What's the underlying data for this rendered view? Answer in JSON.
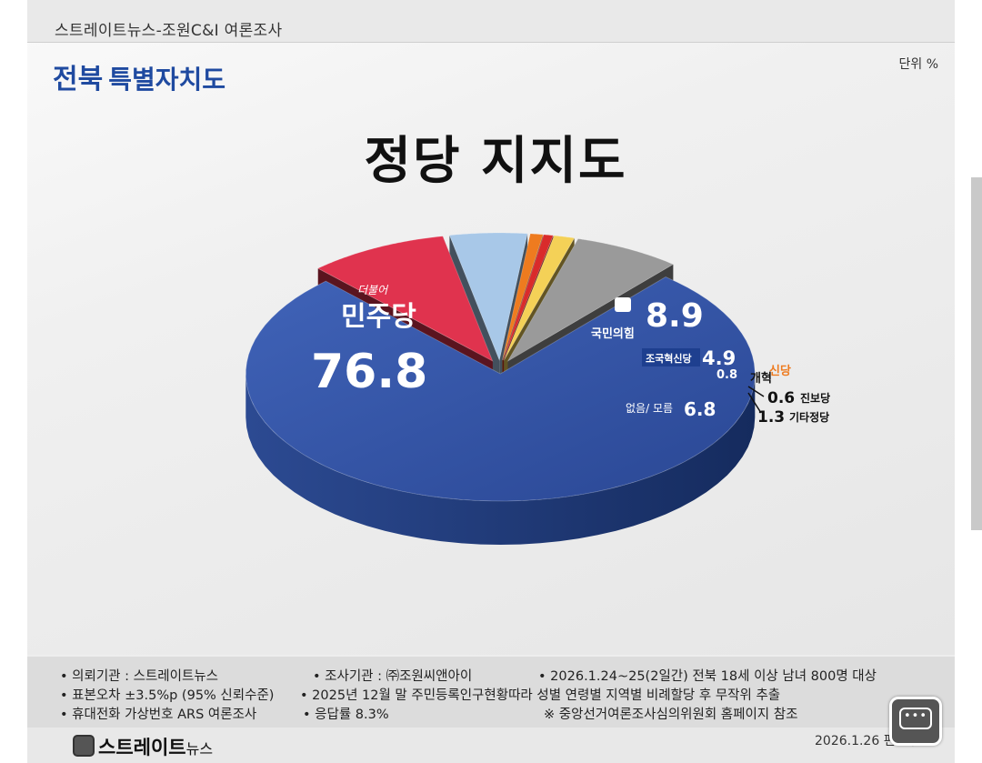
{
  "header": {
    "source": "스트레이트뉴스-조원C&I 여론조사",
    "region_a": "전북",
    "region_b": "특별자치도",
    "unit": "단위 %"
  },
  "chart_data": {
    "type": "pie",
    "title": "정당 지지도",
    "slices": [
      {
        "label": "민주당",
        "sublabel": "더불어",
        "value": 76.8,
        "color": "#2f4fa3"
      },
      {
        "label": "국민의힘",
        "value": 8.9,
        "color": "#e0334e"
      },
      {
        "label": "조국혁신당",
        "value": 4.9,
        "color": "#a8c8e8"
      },
      {
        "label": "개혁신당",
        "value": 0.8,
        "color": "#ee7b1f"
      },
      {
        "label": "진보당",
        "value": 0.6,
        "color": "#d92b2b"
      },
      {
        "label": "기타정당",
        "value": 1.3,
        "color": "#f4d157"
      },
      {
        "label": "없음/ 모름",
        "value": 6.8,
        "color": "#9a9a9a"
      }
    ]
  },
  "notes": {
    "client": "• 의뢰기관 : 스트레이트뉴스",
    "agency": "• 조사기관 : ㈜조원씨앤아이",
    "period": "• 2026.1.24~25(2일간) 전북 18세 이상 남녀 800명 대상",
    "error": "• 표본오차 ±3.5%p (95% 신뢰수준)",
    "sampling": "• 2025년 12월 말 주민등록인구현황따라 성별 연령별 지역별 비례할당 후 무작위 추출",
    "method": "• 휴대전화 가상번호 ARS 여론조사",
    "response": "• 응답률 8.3%",
    "reference": "※ 중앙선거여론조사심의위원회 홈페이지 참조"
  },
  "footer": {
    "brand": "스트레이트",
    "brand_small": "뉴스",
    "date": "2026.1.26  편집부"
  }
}
